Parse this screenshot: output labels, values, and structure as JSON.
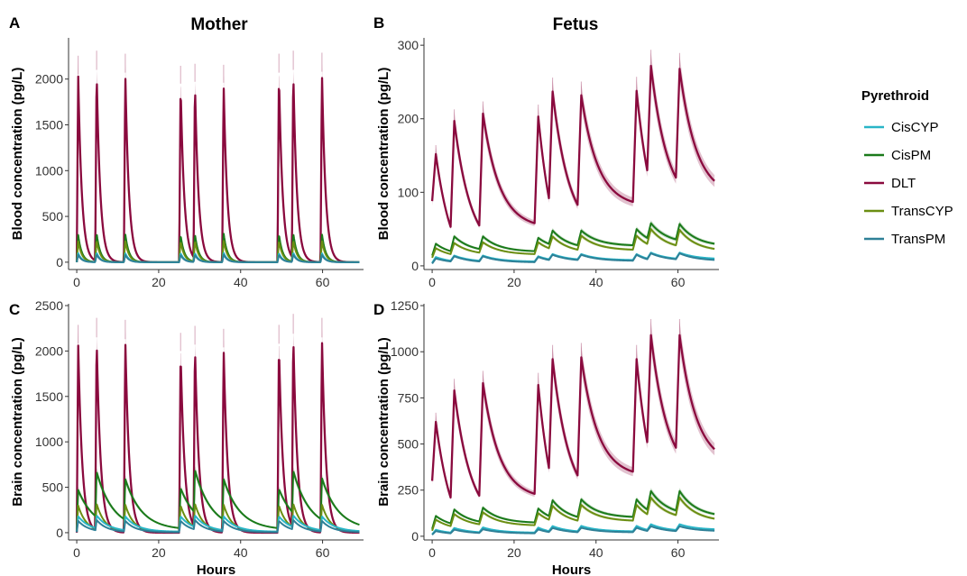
{
  "legend": {
    "title": "Pyrethroid",
    "placement": "right",
    "items": [
      {
        "name": "CisCYP",
        "color": "#29b5c7"
      },
      {
        "name": "CisPM",
        "color": "#1a7a1a"
      },
      {
        "name": "DLT",
        "color": "#8a0a3e"
      },
      {
        "name": "TransCYP",
        "color": "#6b8e12"
      },
      {
        "name": "TransPM",
        "color": "#2e8097"
      }
    ]
  },
  "columns": {
    "left": "Mother",
    "right": "Fetus"
  },
  "chart_data": [
    {
      "panel": "A",
      "type": "line",
      "column_title": "Mother",
      "xlabel": "",
      "ylabel": "Blood concentration (pg/L)",
      "xlim": [
        -2,
        70
      ],
      "ylim": [
        -80,
        2450
      ],
      "xticks": [
        0,
        20,
        40,
        60
      ],
      "yticks": [
        0,
        500,
        1000,
        1500,
        2000
      ],
      "dose_times": [
        0,
        4.5,
        11.5,
        25,
        28.5,
        35.5,
        49,
        52.5,
        59.5
      ],
      "shape": "spike",
      "decay_hours": 0.9,
      "series": [
        {
          "name": "DLT",
          "peaks": [
            2050,
            2100,
            2070,
            1950,
            1970,
            1960,
            2070,
            2100,
            2080
          ],
          "baseline": 0
        },
        {
          "name": "CisPM",
          "peaks": [
            300,
            320,
            310,
            300,
            310,
            320,
            310,
            320,
            310
          ],
          "baseline": 0
        },
        {
          "name": "TransCYP",
          "peaks": [
            230,
            240,
            235,
            230,
            235,
            240,
            235,
            240,
            235
          ],
          "baseline": 0
        },
        {
          "name": "CisCYP",
          "peaks": [
            100,
            105,
            100,
            100,
            100,
            105,
            100,
            105,
            100
          ],
          "baseline": 0
        },
        {
          "name": "TransPM",
          "peaks": [
            80,
            85,
            80,
            80,
            80,
            85,
            80,
            85,
            80
          ],
          "baseline": 0
        }
      ]
    },
    {
      "panel": "B",
      "type": "line",
      "column_title": "Fetus",
      "xlabel": "",
      "ylabel": "Blood concentration (pg/L)",
      "xlim": [
        -2,
        70
      ],
      "ylim": [
        -5,
        310
      ],
      "xticks": [
        0,
        20,
        40,
        60
      ],
      "yticks": [
        0,
        100,
        200,
        300
      ],
      "dose_times": [
        0,
        4.5,
        11.5,
        25,
        28.5,
        35.5,
        49,
        52.5,
        59.5
      ],
      "shape": "accumulating",
      "decay_hours": 9,
      "series": [
        {
          "name": "DLT",
          "peaks": [
            152,
            197,
            207,
            203,
            237,
            232,
            238,
            272,
            268
          ],
          "troughs": [
            88,
            53,
            55,
            58,
            92,
            83,
            87,
            130,
            120
          ],
          "end_value": 115
        },
        {
          "name": "CisPM",
          "peaks": [
            30,
            40,
            40,
            38,
            48,
            48,
            50,
            58,
            57
          ],
          "troughs": [
            14,
            20,
            23,
            20,
            30,
            28,
            28,
            38,
            36
          ],
          "end_value": 30
        },
        {
          "name": "TransCYP",
          "peaks": [
            24,
            31,
            32,
            32,
            40,
            41,
            41,
            50,
            49
          ],
          "troughs": [
            11,
            16,
            18,
            16,
            24,
            22,
            22,
            30,
            28
          ],
          "end_value": 23
        },
        {
          "name": "CisCYP",
          "peaks": [
            12,
            14,
            14,
            13,
            16,
            16,
            16,
            18,
            18
          ],
          "troughs": [
            4,
            7,
            7,
            6,
            9,
            9,
            8,
            10,
            10
          ],
          "end_value": 10
        },
        {
          "name": "TransPM",
          "peaks": [
            10,
            13,
            13,
            12,
            15,
            15,
            15,
            17,
            17
          ],
          "troughs": [
            3,
            6,
            6,
            5,
            8,
            8,
            7,
            9,
            9
          ],
          "end_value": 8
        }
      ]
    },
    {
      "panel": "C",
      "type": "line",
      "column_title": "",
      "xlabel": "Hours",
      "ylabel": "Brain concentration (pg/L)",
      "xlim": [
        -2,
        70
      ],
      "ylim": [
        -80,
        2520
      ],
      "xticks": [
        0,
        20,
        40,
        60
      ],
      "yticks": [
        0,
        500,
        1000,
        1500,
        2000,
        2500
      ],
      "dose_times": [
        0,
        4.5,
        11.5,
        25,
        28.5,
        35.5,
        49,
        52.5,
        59.5
      ],
      "shape": "spike",
      "decay_hours": 1.0,
      "series": [
        {
          "name": "DLT",
          "peaks": [
            2080,
            2150,
            2130,
            2000,
            2070,
            2040,
            2080,
            2190,
            2150
          ],
          "baseline": 0
        },
        {
          "name": "CisPM",
          "peaks": [
            470,
            670,
            590,
            490,
            690,
            590,
            480,
            680,
            600
          ],
          "baseline": 30,
          "decay_hours": 4.0
        },
        {
          "name": "TransCYP",
          "peaks": [
            300,
            320,
            310,
            300,
            320,
            310,
            300,
            320,
            310
          ],
          "baseline": 10,
          "decay_hours": 2.0
        },
        {
          "name": "CisCYP",
          "peaks": [
            180,
            190,
            180,
            180,
            190,
            180,
            180,
            190,
            180
          ],
          "baseline": 10,
          "decay_hours": 3.0
        },
        {
          "name": "TransPM",
          "peaks": [
            130,
            140,
            130,
            130,
            140,
            130,
            130,
            140,
            130
          ],
          "baseline": 5,
          "decay_hours": 2.5
        }
      ]
    },
    {
      "panel": "D",
      "type": "line",
      "column_title": "",
      "xlabel": "Hours",
      "ylabel": "Brain concentration (pg/L)",
      "xlim": [
        -2,
        70
      ],
      "ylim": [
        -20,
        1260
      ],
      "xticks": [
        0,
        20,
        40,
        60
      ],
      "yticks": [
        0,
        250,
        500,
        750,
        1000,
        1250
      ],
      "dose_times": [
        0,
        4.5,
        11.5,
        25,
        28.5,
        35.5,
        49,
        52.5,
        59.5
      ],
      "shape": "accumulating",
      "decay_hours": 9,
      "series": [
        {
          "name": "DLT",
          "peaks": [
            620,
            790,
            830,
            820,
            960,
            970,
            960,
            1090,
            1090
          ],
          "troughs": [
            300,
            210,
            220,
            230,
            370,
            330,
            350,
            510,
            480
          ],
          "end_value": 470
        },
        {
          "name": "CisPM",
          "peaks": [
            110,
            145,
            155,
            150,
            195,
            200,
            200,
            245,
            245
          ],
          "troughs": [
            40,
            70,
            80,
            75,
            110,
            105,
            105,
            145,
            140
          ],
          "end_value": 120
        },
        {
          "name": "TransCYP",
          "peaks": [
            90,
            120,
            130,
            125,
            165,
            170,
            170,
            210,
            210
          ],
          "troughs": [
            30,
            55,
            65,
            60,
            90,
            85,
            85,
            120,
            115
          ],
          "end_value": 95
        },
        {
          "name": "CisCYP",
          "peaks": [
            35,
            45,
            48,
            47,
            55,
            56,
            56,
            65,
            65
          ],
          "troughs": [
            10,
            20,
            22,
            20,
            28,
            27,
            27,
            35,
            34
          ],
          "end_value": 38
        },
        {
          "name": "TransPM",
          "peaks": [
            28,
            36,
            38,
            37,
            45,
            46,
            46,
            54,
            54
          ],
          "troughs": [
            8,
            16,
            18,
            16,
            23,
            22,
            22,
            29,
            28
          ],
          "end_value": 30
        }
      ]
    }
  ]
}
